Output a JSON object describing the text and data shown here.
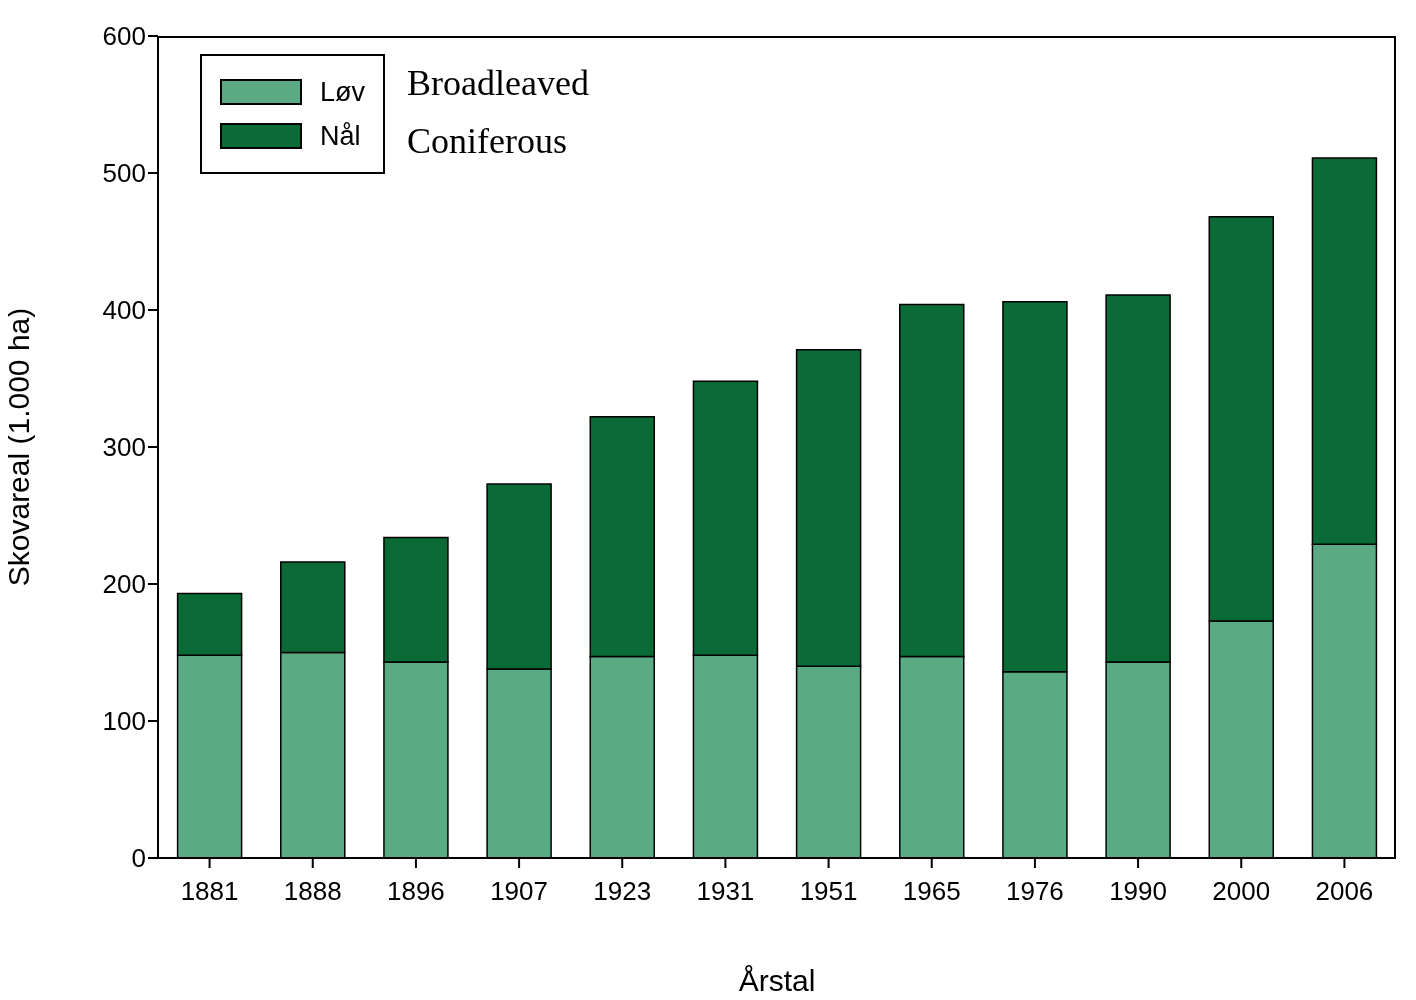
{
  "chart_data": {
    "type": "bar",
    "stacked": true,
    "xlabel": "Årstal",
    "ylabel": "Skovareal (1.000 ha)",
    "categories": [
      "1881",
      "1888",
      "1896",
      "1907",
      "1923",
      "1931",
      "1951",
      "1965",
      "1976",
      "1990",
      "2000",
      "2006"
    ],
    "series": [
      {
        "name": "Løv",
        "color": "#5aab84",
        "values": [
          148,
          150,
          143,
          138,
          147,
          148,
          140,
          147,
          136,
          143,
          173,
          229
        ]
      },
      {
        "name": "Nål",
        "color": "#0a6b36",
        "values": [
          45,
          66,
          91,
          135,
          175,
          200,
          231,
          257,
          270,
          268,
          295,
          282
        ]
      }
    ],
    "ylim": [
      0,
      600
    ],
    "yticks": [
      0,
      100,
      200,
      300,
      400,
      500,
      600
    ],
    "legend": "top left",
    "annotations": [
      "Broadleaved",
      "Coniferous"
    ]
  }
}
